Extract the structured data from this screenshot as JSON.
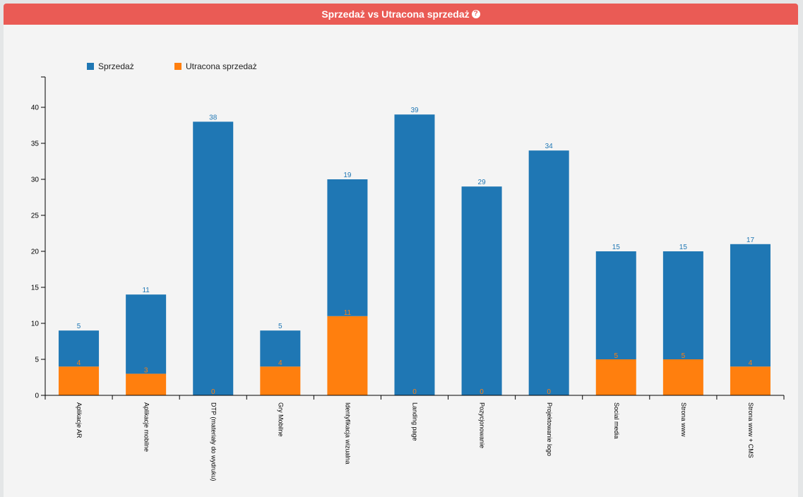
{
  "header": {
    "title": "Sprzedaż vs Utracona sprzedaż",
    "help_icon": "question-circle-icon",
    "background": "#ea5b55"
  },
  "chart_data": {
    "type": "bar",
    "stacked": true,
    "categories": [
      "Aplikacje AR",
      "Aplikacje mobilne",
      "DTP (materiały do wydruku)",
      "Gry Mobilne",
      "Identyfikacja wizualna",
      "Landing page",
      "Pozycjonowanie",
      "Projektowanie logo",
      "Social media",
      "Strona www",
      "Strona www + CMS"
    ],
    "series": [
      {
        "name": "Utracona sprzedaż",
        "color": "#ff7f0e",
        "values": [
          4,
          3,
          0,
          4,
          11,
          0,
          0,
          0,
          5,
          5,
          4
        ]
      },
      {
        "name": "Sprzedaż",
        "color": "#1f77b4",
        "values": [
          5,
          11,
          38,
          5,
          19,
          39,
          29,
          34,
          15,
          15,
          17
        ]
      }
    ],
    "legend": [
      "Sprzedaż",
      "Utracona sprzedaż"
    ],
    "legend_position": "top-left",
    "yticks": [
      0,
      5,
      10,
      15,
      20,
      25,
      30,
      35,
      40
    ],
    "ylim": [
      0,
      44
    ],
    "xlabel": "",
    "ylabel": "",
    "grid": false
  }
}
